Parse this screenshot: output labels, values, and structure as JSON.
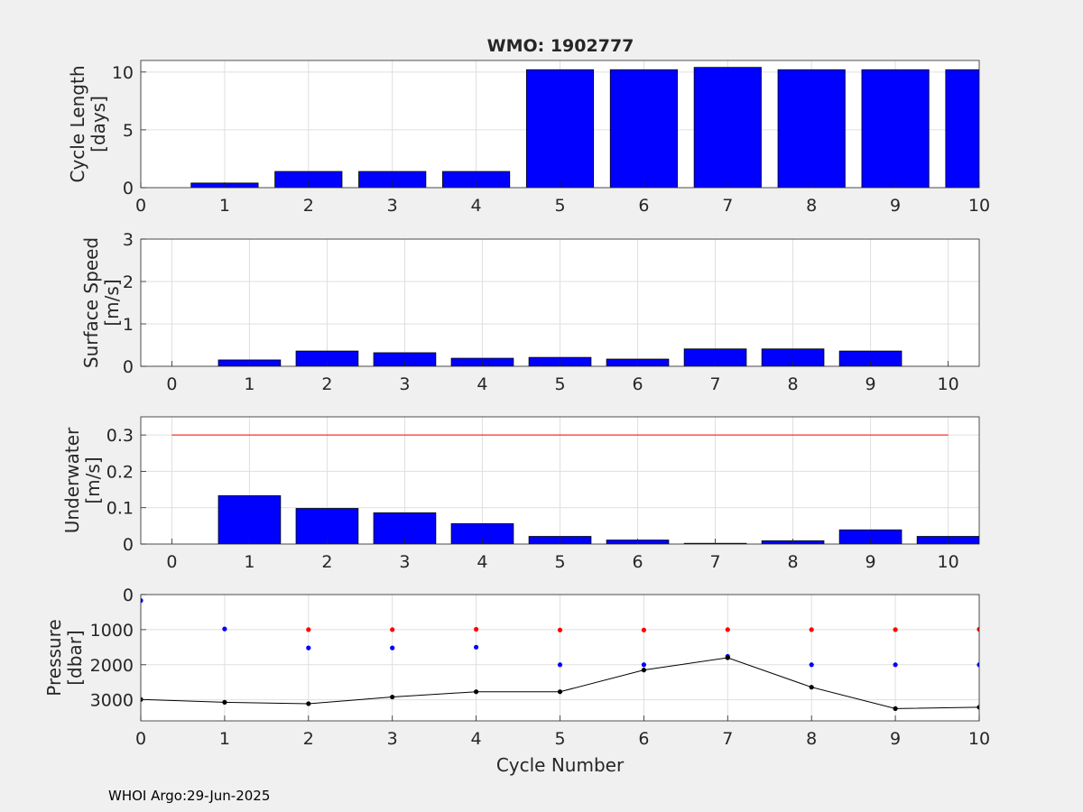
{
  "title": "WMO: 1902777",
  "footer": "WHOI Argo:29-Jun-2025",
  "colors": {
    "bar": "#0000ff",
    "line_ref": "#ff0000",
    "points_red": "#ff0000",
    "points_blue": "#0000ff",
    "points_black": "#000000",
    "grid": "#dfdfdf"
  },
  "chart_data": [
    {
      "type": "bar",
      "title": "WMO: 1902777",
      "ylabel": [
        "Cycle Length",
        "[days]"
      ],
      "xlabel": "",
      "xlim": [
        0,
        10
      ],
      "ylim": [
        0,
        11
      ],
      "xticks": [
        0,
        1,
        2,
        3,
        4,
        5,
        6,
        7,
        8,
        9,
        10
      ],
      "yticks": [
        0,
        5,
        10
      ],
      "grid": true,
      "x": [
        1,
        2,
        3,
        4,
        5,
        6,
        7,
        8,
        9,
        10
      ],
      "values": [
        0.4,
        1.4,
        1.4,
        1.4,
        10.2,
        10.2,
        10.4,
        10.2,
        10.2,
        10.2
      ]
    },
    {
      "type": "bar",
      "title": "",
      "ylabel": [
        "Surface Speed",
        "[m/s]"
      ],
      "xlabel": "",
      "xlim": [
        -0.4,
        10.4
      ],
      "ylim": [
        0,
        3
      ],
      "xticks": [
        0,
        1,
        2,
        3,
        4,
        5,
        6,
        7,
        8,
        9,
        10
      ],
      "yticks": [
        0,
        1,
        2,
        3
      ],
      "grid": true,
      "x": [
        1,
        2,
        3,
        4,
        5,
        6,
        7,
        8,
        9
      ],
      "values": [
        0.15,
        0.36,
        0.32,
        0.19,
        0.21,
        0.17,
        0.41,
        0.41,
        0.36
      ]
    },
    {
      "type": "bar",
      "title": "",
      "ylabel": [
        "Underwater",
        "[m/s]"
      ],
      "xlabel": "",
      "xlim": [
        -0.4,
        10.4
      ],
      "ylim": [
        0,
        0.35
      ],
      "xticks": [
        0,
        1,
        2,
        3,
        4,
        5,
        6,
        7,
        8,
        9,
        10
      ],
      "yticks": [
        0,
        0.1,
        0.2,
        0.3
      ],
      "grid": true,
      "x": [
        1,
        2,
        3,
        4,
        5,
        6,
        7,
        8,
        9,
        10
      ],
      "values": [
        0.133,
        0.098,
        0.086,
        0.056,
        0.021,
        0.011,
        0.002,
        0.009,
        0.039,
        0.021
      ],
      "reference_line": {
        "y": 0.3,
        "x": [
          0,
          10
        ]
      }
    },
    {
      "type": "scatter",
      "title": "",
      "ylabel": [
        "Pressure",
        "[dbar]"
      ],
      "xlabel": "Cycle Number",
      "xlim": [
        0,
        10
      ],
      "ylim": [
        3600,
        0
      ],
      "y_reversed": true,
      "xticks": [
        0,
        1,
        2,
        3,
        4,
        5,
        6,
        7,
        8,
        9,
        10
      ],
      "yticks": [
        0,
        1000,
        2000,
        3000
      ],
      "grid": true,
      "series": [
        {
          "color": "red",
          "x": [
            2,
            3,
            4,
            5,
            6,
            7,
            8,
            9,
            10
          ],
          "y": [
            1000,
            1000,
            990,
            1010,
            1010,
            1000,
            1000,
            1000,
            990
          ]
        },
        {
          "color": "blue",
          "x": [
            0,
            1,
            2,
            3,
            4,
            5,
            6,
            7,
            8,
            9,
            10
          ],
          "y": [
            170,
            980,
            1520,
            1520,
            1500,
            2000,
            2000,
            1760,
            2000,
            2000,
            2000
          ]
        },
        {
          "color": "black",
          "connected": true,
          "x": [
            0,
            1,
            2,
            3,
            4,
            5,
            6,
            7,
            8,
            9,
            10
          ],
          "y": [
            2990,
            3070,
            3110,
            2920,
            2770,
            2770,
            2150,
            1800,
            2640,
            3250,
            3210
          ]
        }
      ]
    }
  ]
}
